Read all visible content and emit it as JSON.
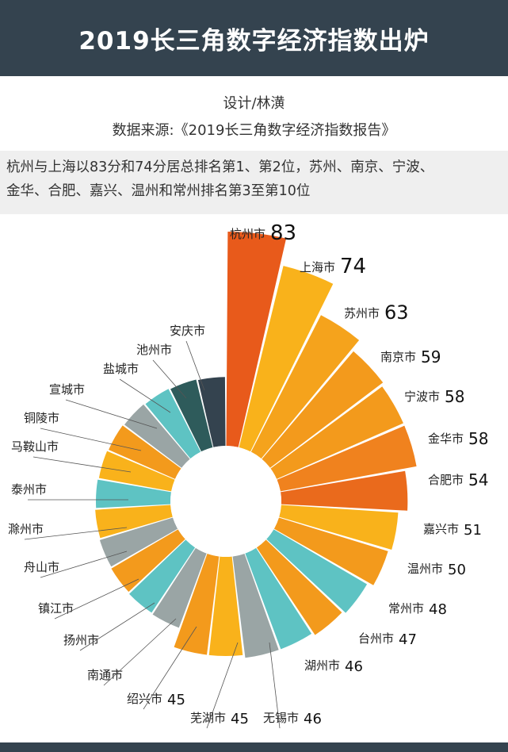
{
  "header": {
    "title": "2019长三角数字经济指数出炉"
  },
  "credits": {
    "designer": "设计/林潢",
    "source": "数据来源:《2019长三角数字经济指数报告》"
  },
  "summary": {
    "line1": "杭州与上海以83分和74分居总排名第1、第2位，苏州、南京、宁波、",
    "line2": "金华、合肥、嘉兴、温州和常州排名第3至第10位"
  },
  "chart_data": {
    "type": "radial-bar",
    "categories": [
      "杭州市",
      "上海市",
      "苏州市",
      "南京市",
      "宁波市",
      "金华市",
      "合肥市",
      "嘉兴市",
      "温州市",
      "常州市",
      "台州市",
      "湖州市",
      "无锡市",
      "芜湖市",
      "绍兴市",
      "南通市",
      "扬州市",
      "镇江市",
      "舟山市",
      "滁州市",
      "泰州市",
      "马鞍山市",
      "铜陵市",
      "宣城市",
      "盐城市",
      "池州市",
      "安庆市"
    ],
    "values": [
      83,
      74,
      63,
      59,
      58,
      58,
      54,
      51,
      50,
      48,
      47,
      46,
      46,
      45,
      45,
      null,
      null,
      null,
      null,
      null,
      null,
      null,
      null,
      null,
      null,
      null,
      null
    ],
    "value_labels": [
      "83",
      "74",
      "63",
      "59",
      "58",
      "58",
      "54",
      "51",
      "50",
      "48",
      "47",
      "46",
      "46",
      "45",
      "45",
      "",
      "",
      "",
      "",
      "",
      "",
      "",
      "",
      "",
      "",
      "",
      ""
    ],
    "colors": [
      "#e85a1b",
      "#f9b21b",
      "#f5a31c",
      "#f39a1c",
      "#f39a1c",
      "#f0821e",
      "#ea6a1c",
      "#f9b21b",
      "#f39a1c",
      "#5ec3c3",
      "#f39a1c",
      "#5ec3c3",
      "#9aa5a5",
      "#f9b21b",
      "#f39a1c",
      "#9aa5a5",
      "#5ec3c3",
      "#f39a1c",
      "#9aa5a5",
      "#f9b21b",
      "#5ec3c3",
      "#f9b21b",
      "#f39a1c",
      "#9aa5a5",
      "#5ec3c3",
      "#2e5b5b",
      "#34434f"
    ]
  }
}
